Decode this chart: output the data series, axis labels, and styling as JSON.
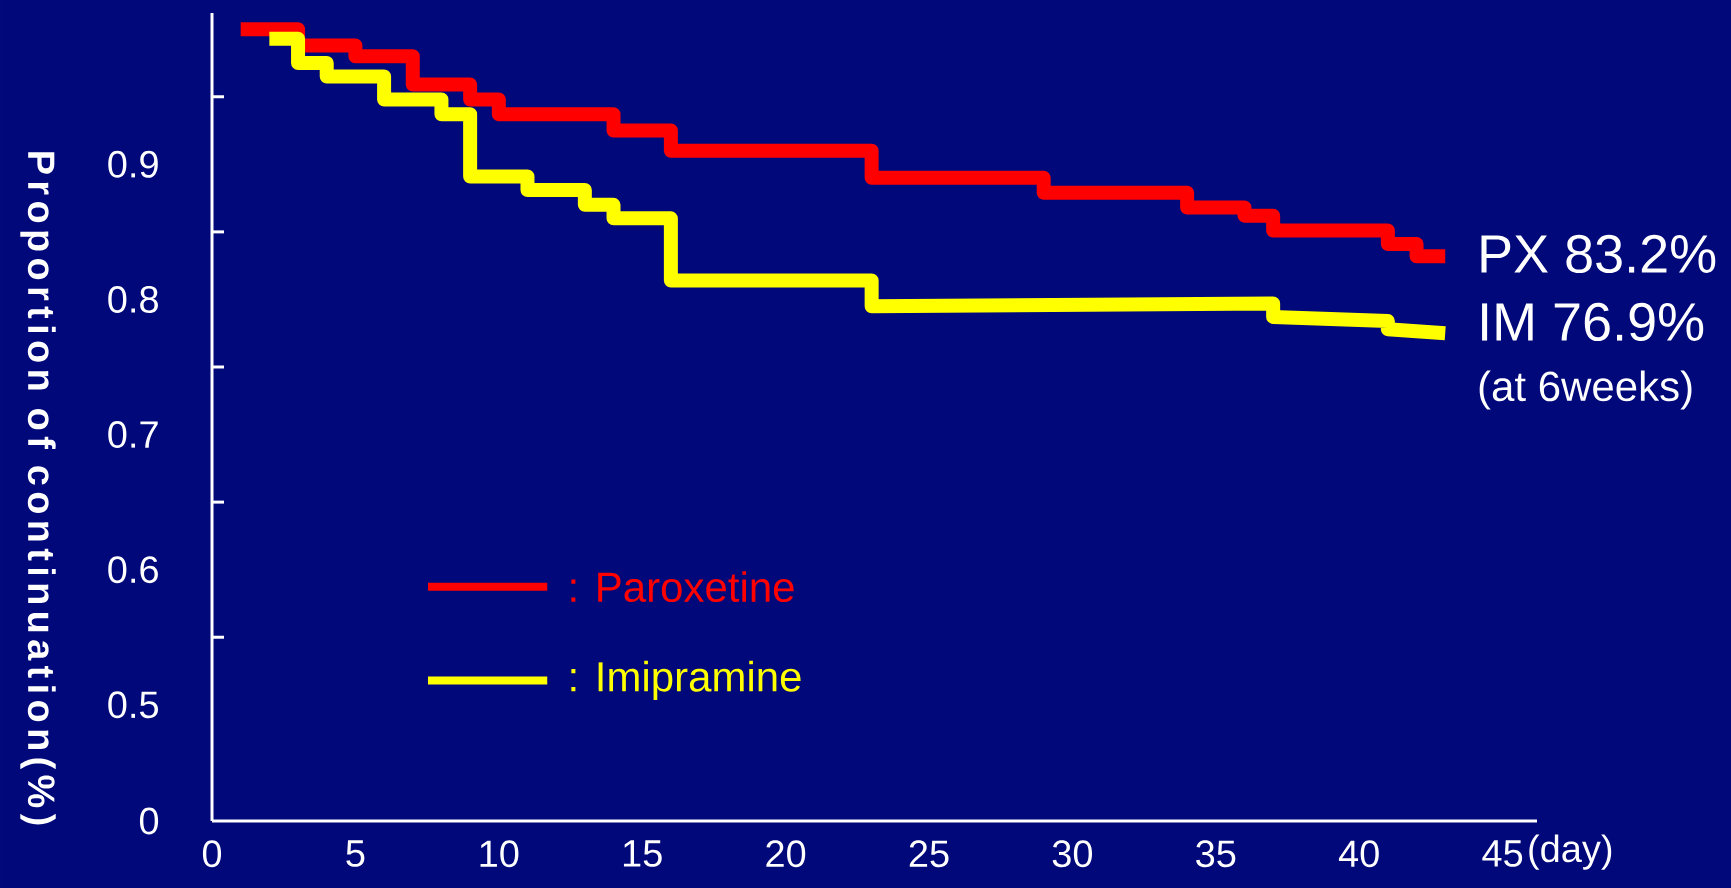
{
  "chart_data": {
    "type": "line",
    "xlabel": "(day)",
    "ylabel": "Proportion of continuation(%)",
    "xlim": [
      0,
      46.2
    ],
    "ylim": [
      0.414,
      1.012
    ],
    "xticks": [
      0,
      5,
      10,
      15,
      20,
      25,
      30,
      35,
      40,
      45
    ],
    "yticks": [
      {
        "value": 0.414,
        "label": "0"
      },
      0.5,
      {
        "value": 0.55,
        "label": null
      },
      0.6,
      {
        "value": 0.65,
        "label": null
      },
      0.7,
      {
        "value": 0.75,
        "label": null
      },
      0.8,
      {
        "value": 0.85,
        "label": null
      },
      0.9,
      {
        "value": 0.95,
        "label": null
      }
    ],
    "legend": "bottom left",
    "series": [
      {
        "name": ": Paroxetine",
        "color": "#ff0000",
        "x": [
          1,
          3,
          3,
          5,
          5,
          7,
          7,
          9,
          9,
          10,
          10,
          14,
          14,
          16,
          16,
          23,
          23,
          29,
          29,
          34,
          34,
          36,
          36,
          37,
          37,
          41,
          41,
          42,
          42,
          43
        ],
        "values": [
          1.0,
          1.0,
          0.988,
          0.988,
          0.98,
          0.98,
          0.959,
          0.959,
          0.948,
          0.948,
          0.937,
          0.937,
          0.925,
          0.925,
          0.91,
          0.91,
          0.89,
          0.89,
          0.879,
          0.879,
          0.868,
          0.868,
          0.862,
          0.862,
          0.851,
          0.851,
          0.841,
          0.841,
          0.832,
          0.832
        ]
      },
      {
        "name": ": Imipramine",
        "color": "#ffff00",
        "x": [
          2,
          3,
          3,
          4,
          4,
          6,
          6,
          8,
          8,
          9,
          9,
          11,
          11,
          13,
          13,
          14,
          14,
          16,
          16,
          23,
          23,
          37,
          37,
          41,
          41,
          43
        ],
        "values": [
          0.993,
          0.993,
          0.975,
          0.975,
          0.965,
          0.965,
          0.948,
          0.948,
          0.937,
          0.937,
          0.891,
          0.891,
          0.881,
          0.881,
          0.87,
          0.87,
          0.86,
          0.86,
          0.814,
          0.814,
          0.795,
          0.797,
          0.787,
          0.784,
          0.778,
          0.775
        ]
      }
    ],
    "annotations": [
      "PX  83.2%",
      "IM  76.9%",
      "(at 6weeks)"
    ]
  }
}
